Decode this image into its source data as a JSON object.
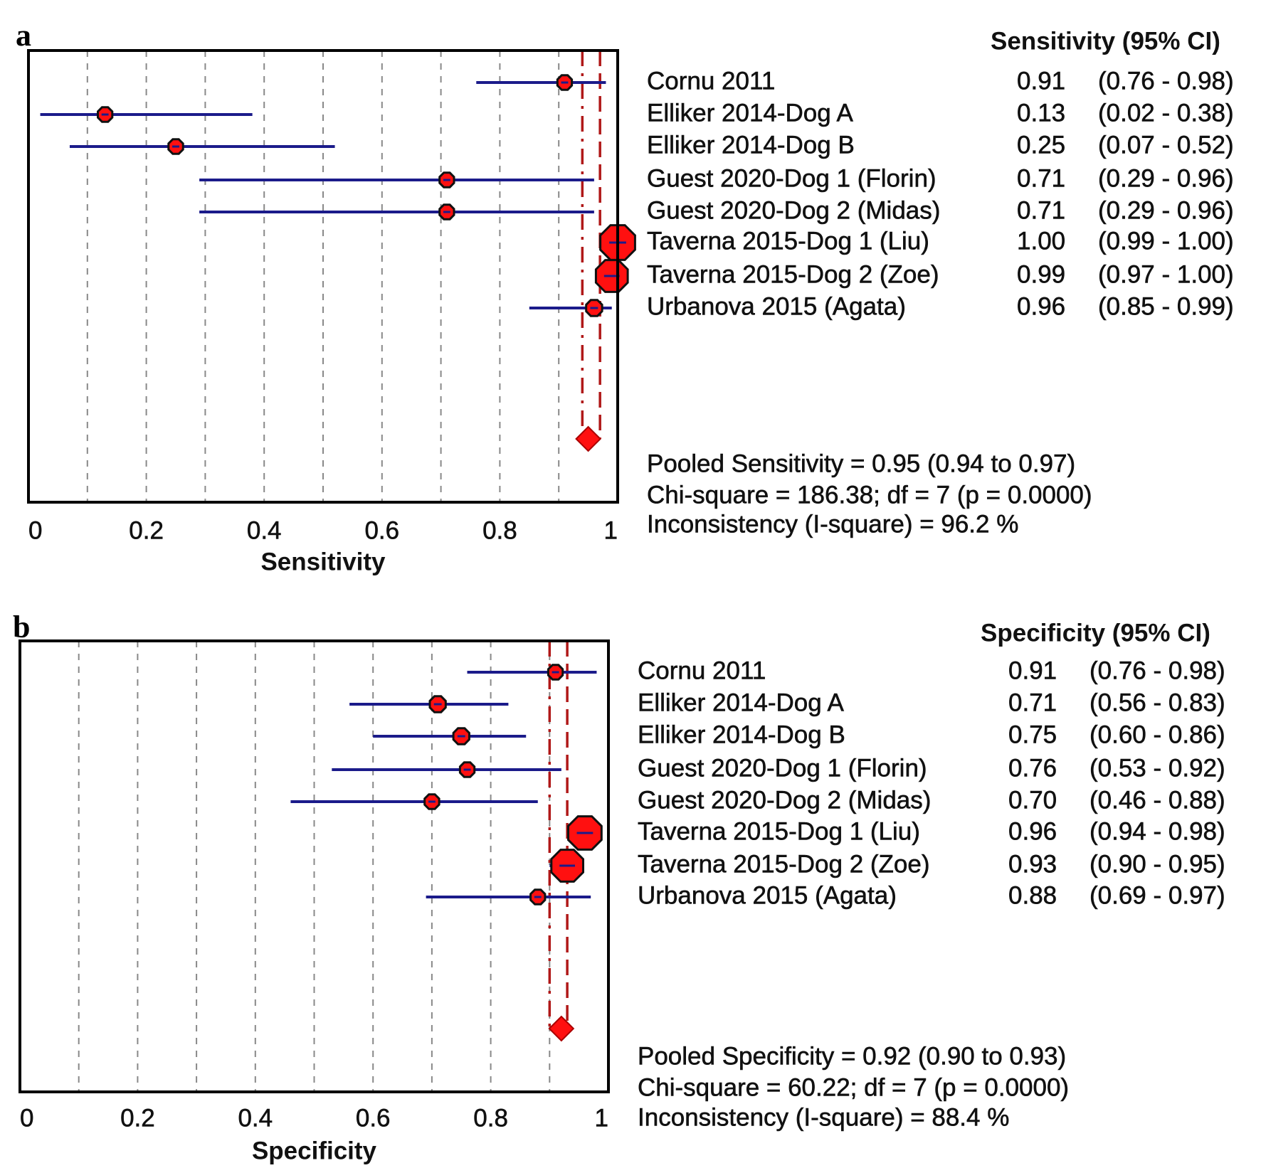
{
  "colors": {
    "ci_line": "#1b1b8a",
    "marker": "#ff1010",
    "pooled_line": "#b01818",
    "grid": "#888888"
  },
  "chart_data": [
    {
      "type": "forest",
      "panel_label": "a",
      "header": "Sensitivity (95% CI)",
      "xlabel": "Sensitivity",
      "xlim": [
        0,
        1
      ],
      "xticks": [
        0,
        0.2,
        0.4,
        0.6,
        0.8,
        1
      ],
      "xtick_labels": [
        "0",
        "0.2",
        "0.4",
        "0.6",
        "0.8",
        "1"
      ],
      "grid": "vertical dashed at 0.1 steps",
      "studies": [
        {
          "name": "Cornu 2011",
          "value": 0.91,
          "low": 0.76,
          "high": 0.98,
          "value_text": "0.91",
          "ci_text": "(0.76 - 0.98)",
          "weight": 1
        },
        {
          "name": "Elliker 2014-Dog A",
          "value": 0.13,
          "low": 0.02,
          "high": 0.38,
          "value_text": "0.13",
          "ci_text": "(0.02 - 0.38)",
          "weight": 1
        },
        {
          "name": "Elliker 2014-Dog B",
          "value": 0.25,
          "low": 0.07,
          "high": 0.52,
          "value_text": "0.25",
          "ci_text": "(0.07 - 0.52)",
          "weight": 1
        },
        {
          "name": "Guest 2020-Dog 1 (Florin)",
          "value": 0.71,
          "low": 0.29,
          "high": 0.96,
          "value_text": "0.71",
          "ci_text": "(0.29 - 0.96)",
          "weight": 1
        },
        {
          "name": "Guest 2020-Dog 2 (Midas)",
          "value": 0.71,
          "low": 0.29,
          "high": 0.96,
          "value_text": "0.71",
          "ci_text": "(0.29 - 0.96)",
          "weight": 1
        },
        {
          "name": "Taverna 2015-Dog 1 (Liu)",
          "value": 1.0,
          "low": 0.99,
          "high": 1.0,
          "value_text": "1.00",
          "ci_text": "(0.99 - 1.00)",
          "weight": 2.4
        },
        {
          "name": "Taverna 2015-Dog 2 (Zoe)",
          "value": 0.99,
          "low": 0.97,
          "high": 1.0,
          "value_text": "0.99",
          "ci_text": "(0.97 - 1.00)",
          "weight": 2.2
        },
        {
          "name": "Urbanova 2015 (Agata)",
          "value": 0.96,
          "low": 0.85,
          "high": 0.99,
          "value_text": "0.96",
          "ci_text": "(0.85 - 0.99)",
          "weight": 1.1
        }
      ],
      "pooled": {
        "value": 0.95,
        "low": 0.94,
        "high": 0.97
      },
      "stats": [
        "Pooled Sensitivity = 0.95 (0.94 to 0.97)",
        "Chi-square = 186.38; df =  7 (p = 0.0000)",
        "Inconsistency (I-square) = 96.2 %"
      ]
    },
    {
      "type": "forest",
      "panel_label": "b",
      "header": "Specificity (95% CI)",
      "xlabel": "Specificity",
      "xlim": [
        0,
        1
      ],
      "xticks": [
        0,
        0.2,
        0.4,
        0.6,
        0.8,
        1
      ],
      "xtick_labels": [
        "0",
        "0.2",
        "0.4",
        "0.6",
        "0.8",
        "1"
      ],
      "grid": "vertical dashed at 0.1 steps",
      "studies": [
        {
          "name": "Cornu 2011",
          "value": 0.91,
          "low": 0.76,
          "high": 0.98,
          "value_text": "0.91",
          "ci_text": "(0.76 - 0.98)",
          "weight": 1
        },
        {
          "name": "Elliker 2014-Dog A",
          "value": 0.71,
          "low": 0.56,
          "high": 0.83,
          "value_text": "0.71",
          "ci_text": "(0.56 - 0.83)",
          "weight": 1.1
        },
        {
          "name": "Elliker 2014-Dog B",
          "value": 0.75,
          "low": 0.6,
          "high": 0.86,
          "value_text": "0.75",
          "ci_text": "(0.60 - 0.86)",
          "weight": 1.1
        },
        {
          "name": "Guest 2020-Dog 1 (Florin)",
          "value": 0.76,
          "low": 0.53,
          "high": 0.92,
          "value_text": "0.76",
          "ci_text": "(0.53 - 0.92)",
          "weight": 1
        },
        {
          "name": "Guest 2020-Dog 2 (Midas)",
          "value": 0.7,
          "low": 0.46,
          "high": 0.88,
          "value_text": "0.70",
          "ci_text": "(0.46 - 0.88)",
          "weight": 1
        },
        {
          "name": "Taverna 2015-Dog 1 (Liu)",
          "value": 0.96,
          "low": 0.94,
          "high": 0.98,
          "value_text": "0.96",
          "ci_text": "(0.94 - 0.98)",
          "weight": 2.3
        },
        {
          "name": "Taverna 2015-Dog 2 (Zoe)",
          "value": 0.93,
          "low": 0.9,
          "high": 0.95,
          "value_text": "0.93",
          "ci_text": "(0.90 - 0.95)",
          "weight": 2.2
        },
        {
          "name": "Urbanova 2015 (Agata)",
          "value": 0.88,
          "low": 0.69,
          "high": 0.97,
          "value_text": "0.88",
          "ci_text": "(0.69 - 0.97)",
          "weight": 1
        }
      ],
      "pooled": {
        "value": 0.92,
        "low": 0.9,
        "high": 0.93
      },
      "stats": [
        "Pooled Specificity = 0.92 (0.90 to 0.93)",
        "Chi-square = 60.22; df =  7 (p = 0.0000)",
        "Inconsistency (I-square) = 88.4 %"
      ]
    }
  ]
}
